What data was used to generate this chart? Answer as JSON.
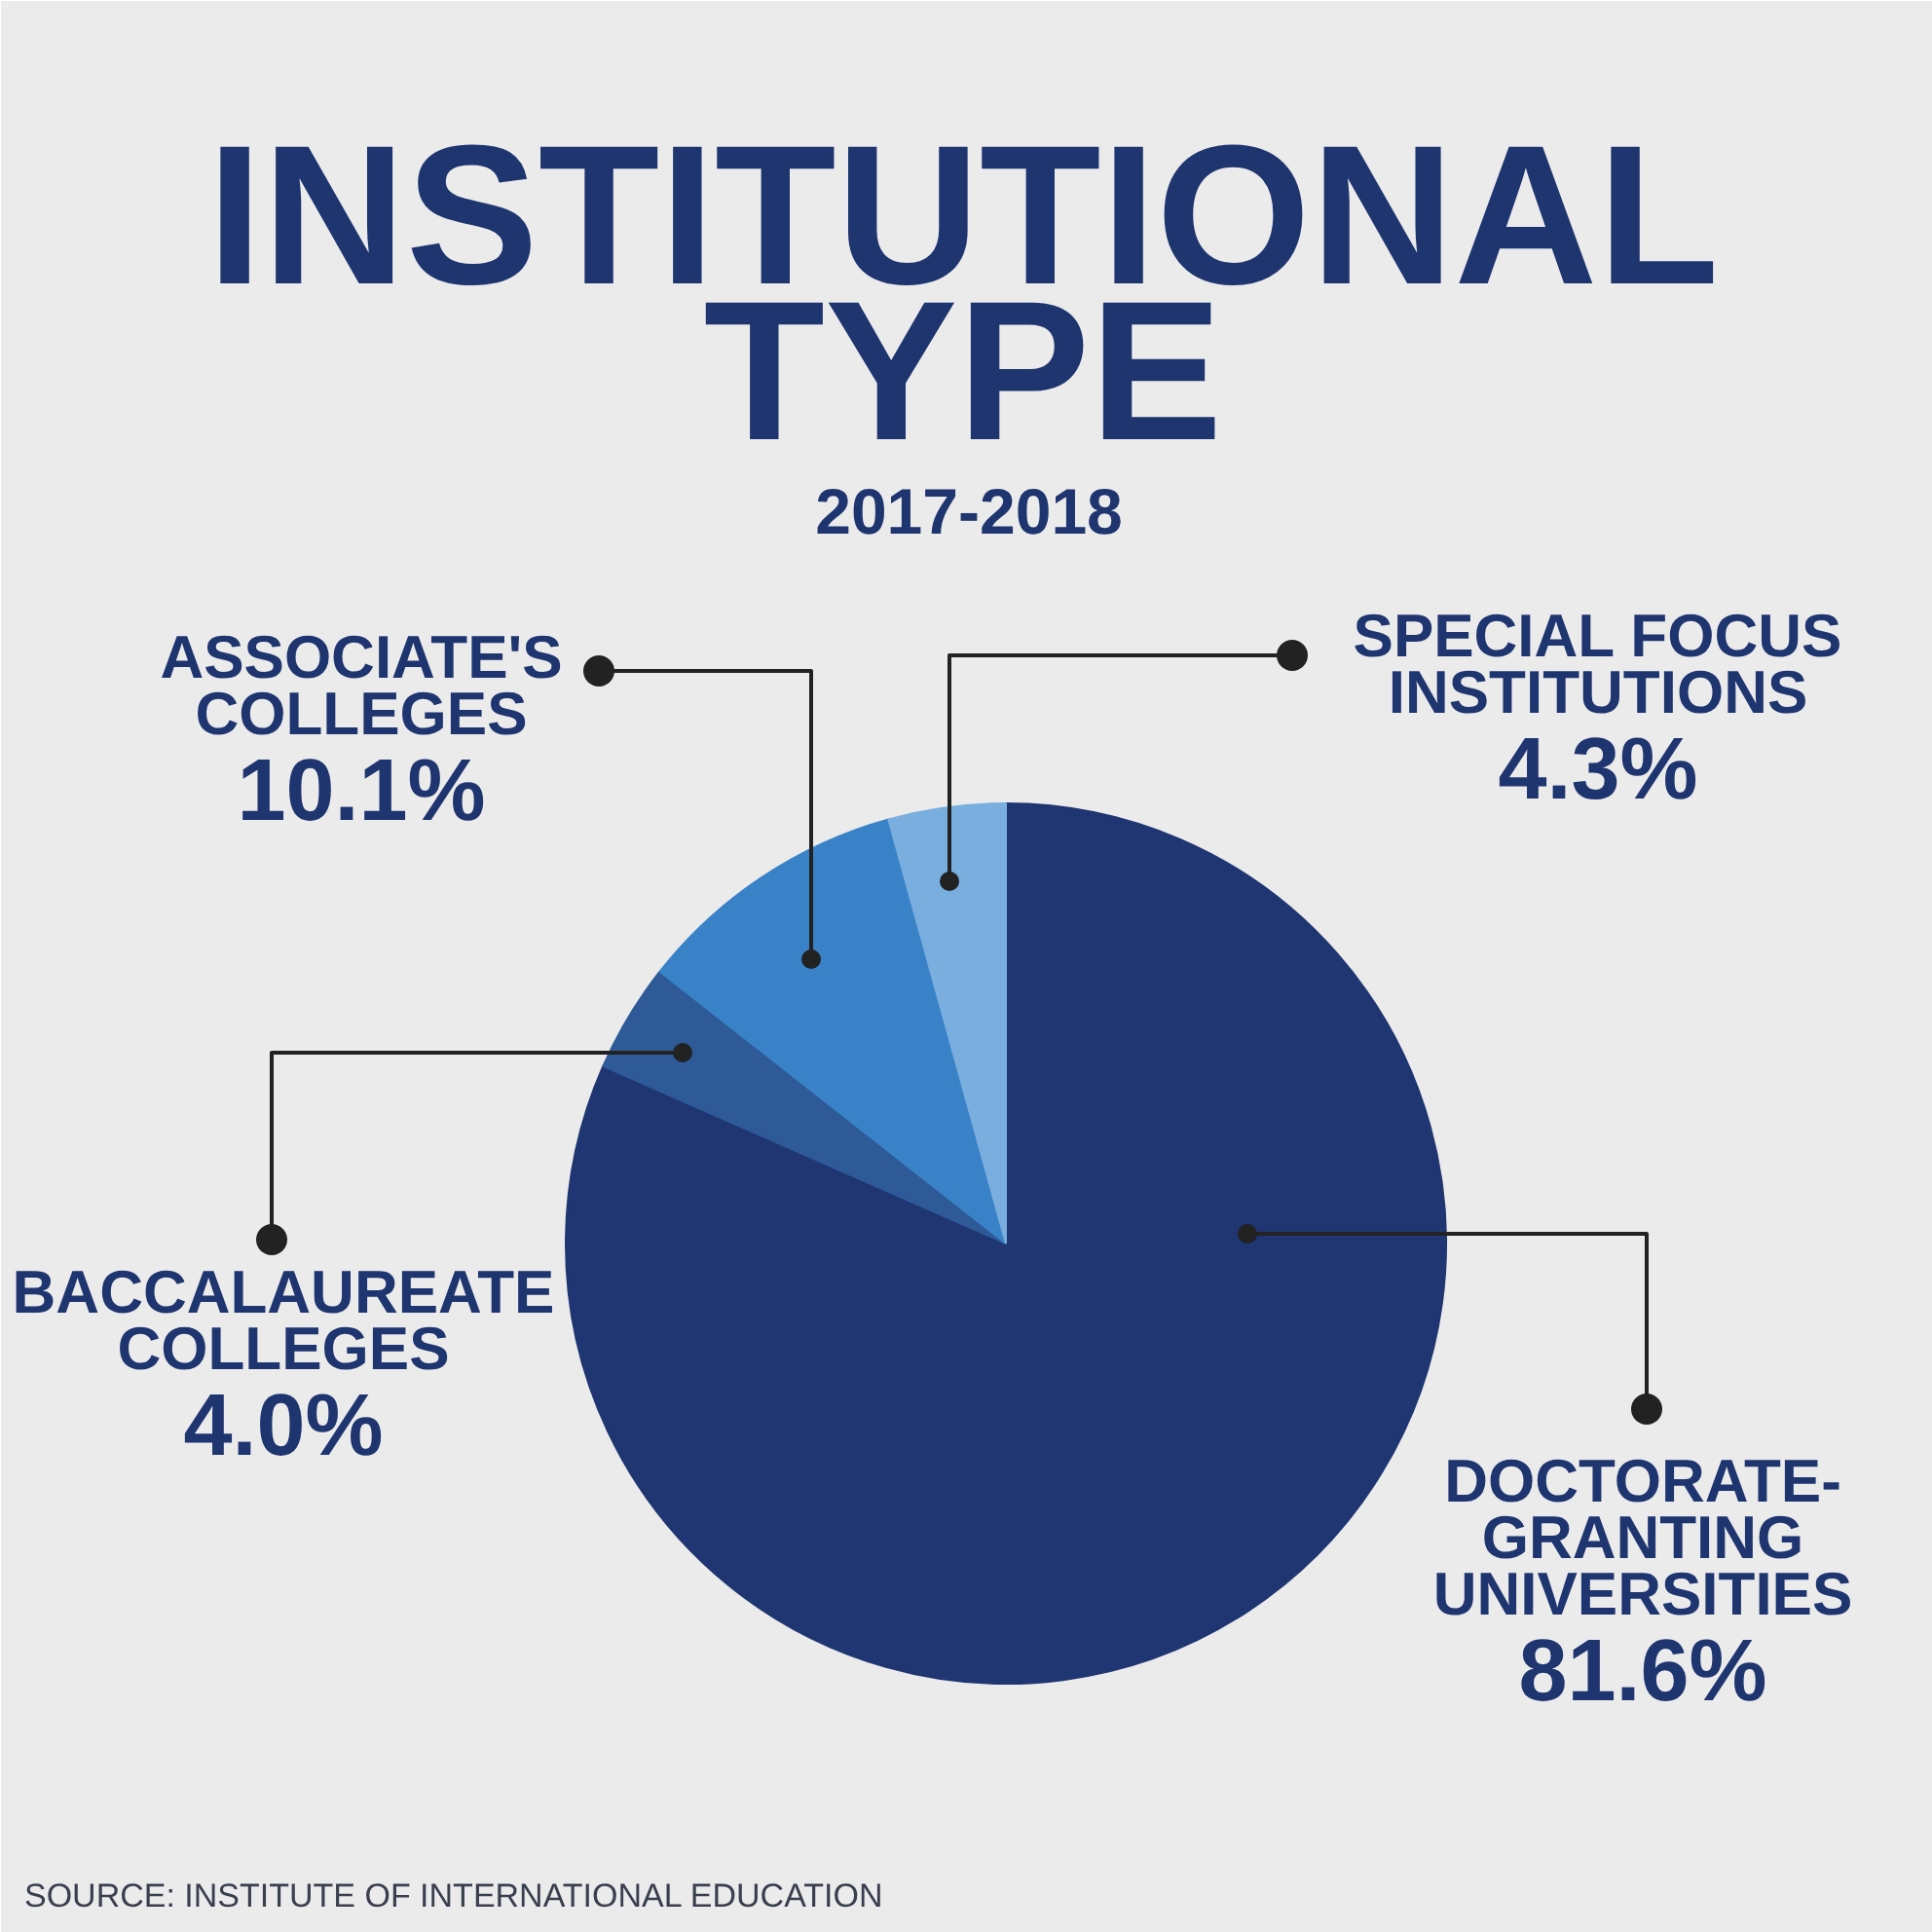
{
  "chart_data": {
    "type": "pie",
    "title": "INSTITUTIONAL TYPE",
    "subtitle": "2017-2018",
    "categories": [
      "DOCTORATE-GRANTING UNIVERSITIES",
      "BACCALAUREATE COLLEGES",
      "ASSOCIATE'S COLLEGES",
      "SPECIAL FOCUS INSTITUTIONS"
    ],
    "values": [
      81.6,
      4.0,
      10.1,
      4.3
    ],
    "colors": [
      "#1f3672",
      "#2e5a98",
      "#3a82c7",
      "#7aaedf"
    ],
    "value_labels": [
      "81.6%",
      "4.0%",
      "10.1%",
      "4.3%"
    ],
    "annotations": [
      "SOURCE: INSTITUTE OF INTERNATIONAL EDUCATION"
    ]
  }
}
